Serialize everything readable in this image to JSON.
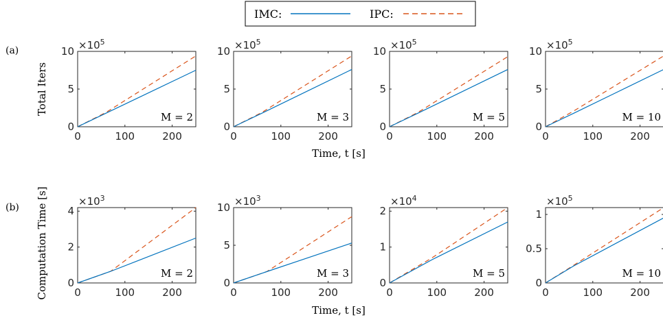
{
  "legend": {
    "entries": [
      {
        "label": "IMC:",
        "color": "#0072BD",
        "dash": "solid"
      },
      {
        "label": "IPC:",
        "color": "#D95319",
        "dash": "dashed"
      }
    ]
  },
  "rows": [
    {
      "label": "(a)",
      "ylabel": "Total Iters"
    },
    {
      "label": "(b)",
      "ylabel": "Computation Time [s]"
    }
  ],
  "xlabel": "Time, t [s]",
  "chart_data": [
    {
      "type": "line",
      "row": 0,
      "col": 0,
      "annotation": "M = 2",
      "exp_label": "×10",
      "exp_power": "5",
      "xlim": [
        0,
        250
      ],
      "ylim": [
        0,
        10
      ],
      "xticks": [
        0,
        100,
        200
      ],
      "yticks": [
        0,
        5,
        10
      ],
      "series": [
        {
          "name": "IMC",
          "x": [
            0,
            60,
            250
          ],
          "y": [
            0,
            1.8,
            7.5
          ]
        },
        {
          "name": "IPC",
          "x": [
            0,
            60,
            250
          ],
          "y": [
            0,
            1.9,
            9.4
          ]
        }
      ]
    },
    {
      "type": "line",
      "row": 0,
      "col": 1,
      "annotation": "M = 3",
      "exp_label": "×10",
      "exp_power": "5",
      "xlim": [
        0,
        250
      ],
      "ylim": [
        0,
        10
      ],
      "xticks": [
        0,
        100,
        200
      ],
      "yticks": [
        0,
        5,
        10
      ],
      "series": [
        {
          "name": "IMC",
          "x": [
            0,
            60,
            250
          ],
          "y": [
            0,
            1.8,
            7.6
          ]
        },
        {
          "name": "IPC",
          "x": [
            0,
            60,
            250
          ],
          "y": [
            0,
            1.9,
            9.4
          ]
        }
      ]
    },
    {
      "type": "line",
      "row": 0,
      "col": 2,
      "annotation": "M = 5",
      "exp_label": "×10",
      "exp_power": "5",
      "xlim": [
        0,
        250
      ],
      "ylim": [
        0,
        10
      ],
      "xticks": [
        0,
        100,
        200
      ],
      "yticks": [
        0,
        5,
        10
      ],
      "series": [
        {
          "name": "IMC",
          "x": [
            0,
            60,
            250
          ],
          "y": [
            0,
            1.8,
            7.6
          ]
        },
        {
          "name": "IPC",
          "x": [
            0,
            60,
            250
          ],
          "y": [
            0,
            1.9,
            9.3
          ]
        }
      ]
    },
    {
      "type": "line",
      "row": 0,
      "col": 3,
      "annotation": "M = 10",
      "exp_label": "×10",
      "exp_power": "5",
      "xlim": [
        0,
        250
      ],
      "ylim": [
        0,
        10
      ],
      "xticks": [
        0,
        100,
        200
      ],
      "yticks": [
        0,
        5,
        10
      ],
      "series": [
        {
          "name": "IMC",
          "x": [
            0,
            60,
            250
          ],
          "y": [
            0,
            1.8,
            7.6
          ]
        },
        {
          "name": "IPC",
          "x": [
            0,
            60,
            250
          ],
          "y": [
            0,
            2.1,
            9.4
          ]
        }
      ]
    },
    {
      "type": "line",
      "row": 1,
      "col": 0,
      "annotation": "M = 2",
      "exp_label": "×10",
      "exp_power": "3",
      "xlim": [
        0,
        250
      ],
      "ylim": [
        0,
        4.2
      ],
      "xticks": [
        0,
        100,
        200
      ],
      "yticks": [
        0,
        2,
        4
      ],
      "series": [
        {
          "name": "IMC",
          "x": [
            0,
            70,
            250
          ],
          "y": [
            0,
            0.65,
            2.5
          ]
        },
        {
          "name": "IPC",
          "x": [
            0,
            70,
            250
          ],
          "y": [
            0,
            0.65,
            4.2
          ]
        }
      ]
    },
    {
      "type": "line",
      "row": 1,
      "col": 1,
      "annotation": "M = 3",
      "exp_label": "×10",
      "exp_power": "3",
      "xlim": [
        0,
        250
      ],
      "ylim": [
        0,
        10
      ],
      "xticks": [
        0,
        100,
        200
      ],
      "yticks": [
        0,
        5,
        10
      ],
      "series": [
        {
          "name": "IMC",
          "x": [
            0,
            70,
            250
          ],
          "y": [
            0,
            1.5,
            5.3
          ]
        },
        {
          "name": "IPC",
          "x": [
            0,
            70,
            250
          ],
          "y": [
            0,
            1.5,
            8.8
          ]
        }
      ]
    },
    {
      "type": "line",
      "row": 1,
      "col": 2,
      "annotation": "M = 5",
      "exp_label": "×10",
      "exp_power": "4",
      "xlim": [
        0,
        250
      ],
      "ylim": [
        0,
        2.1
      ],
      "xticks": [
        0,
        100,
        200
      ],
      "yticks": [
        0,
        1,
        2
      ],
      "series": [
        {
          "name": "IMC",
          "x": [
            0,
            90,
            250
          ],
          "y": [
            0,
            0.65,
            1.7
          ]
        },
        {
          "name": "IPC",
          "x": [
            0,
            90,
            250
          ],
          "y": [
            0,
            0.7,
            2.1
          ]
        }
      ]
    },
    {
      "type": "line",
      "row": 1,
      "col": 3,
      "annotation": "M = 10",
      "exp_label": "×10",
      "exp_power": "5",
      "xlim": [
        0,
        250
      ],
      "ylim": [
        0,
        1.1
      ],
      "xticks": [
        0,
        100,
        200
      ],
      "yticks": [
        0,
        0.5,
        1
      ],
      "series": [
        {
          "name": "IMC",
          "x": [
            0,
            60,
            250
          ],
          "y": [
            0,
            0.25,
            0.95
          ]
        },
        {
          "name": "IPC",
          "x": [
            0,
            60,
            250
          ],
          "y": [
            0,
            0.26,
            1.1
          ]
        }
      ]
    }
  ]
}
